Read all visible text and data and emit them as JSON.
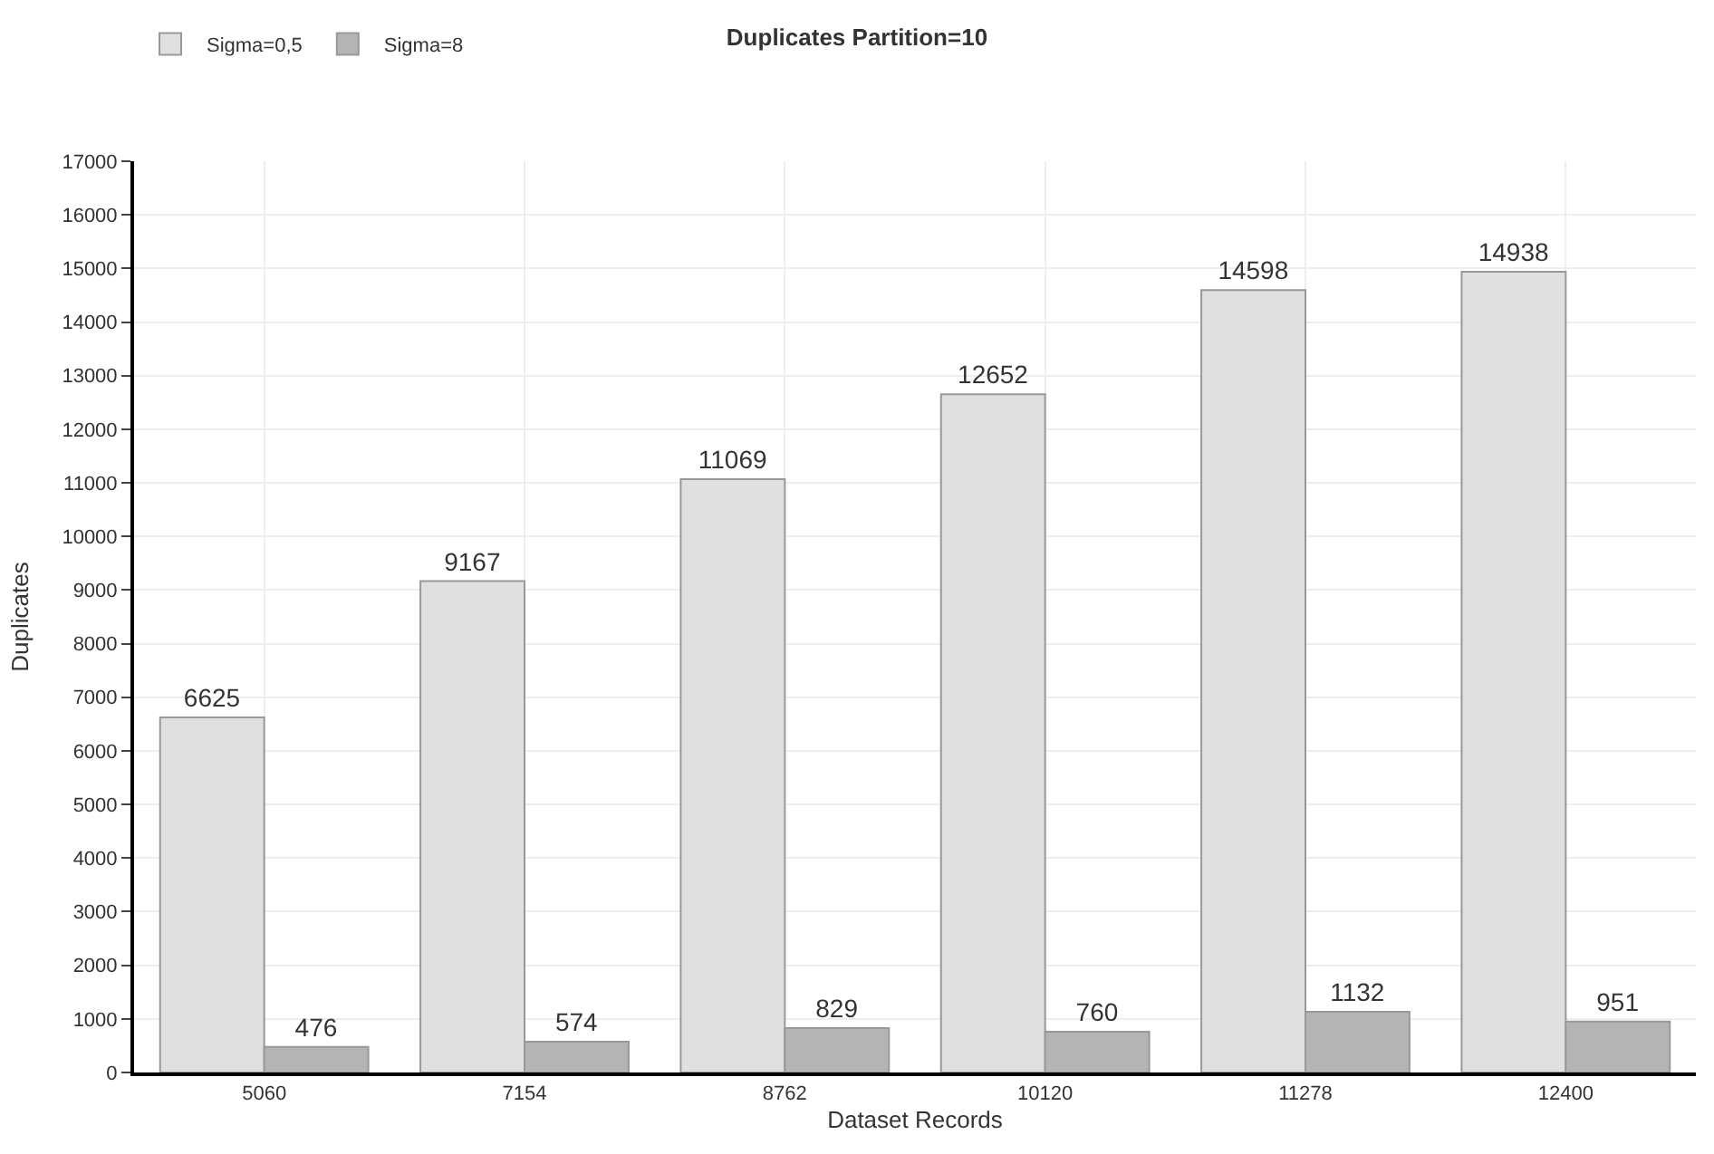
{
  "chart_data": {
    "type": "bar",
    "title": "Duplicates Partition=10",
    "xlabel": "Dataset Records",
    "ylabel": "Duplicates",
    "categories": [
      "5060",
      "7154",
      "8762",
      "10120",
      "11278",
      "12400"
    ],
    "series": [
      {
        "name": "Sigma=0,5",
        "color": "#e0e0e0",
        "values": [
          6625,
          9167,
          11069,
          12652,
          14598,
          14938
        ]
      },
      {
        "name": "Sigma=8",
        "color": "#b4b4b4",
        "values": [
          476,
          574,
          829,
          760,
          1132,
          951
        ]
      }
    ],
    "ylim": [
      0,
      17000
    ],
    "yticks": [
      0,
      1000,
      2000,
      3000,
      4000,
      5000,
      6000,
      7000,
      8000,
      9000,
      10000,
      11000,
      12000,
      13000,
      14000,
      15000,
      16000,
      17000
    ],
    "grid": true,
    "legend": "top left",
    "data_labels": true
  }
}
